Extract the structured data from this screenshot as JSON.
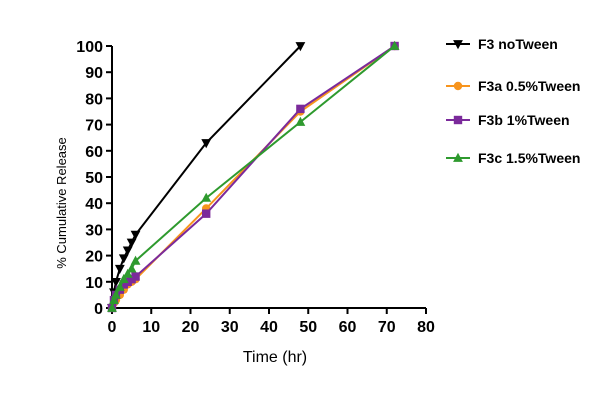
{
  "chart_data": {
    "type": "line",
    "xlabel": "Time (hr)",
    "ylabel": "% Cumulative Release",
    "xlim": [
      0,
      80
    ],
    "ylim": [
      0,
      100
    ],
    "xticks": [
      "0",
      "10",
      "20",
      "30",
      "40",
      "50",
      "60",
      "70",
      "80"
    ],
    "yticks": [
      "0",
      "10",
      "20",
      "30",
      "40",
      "50",
      "60",
      "70",
      "80",
      "90",
      "100"
    ],
    "grid": false,
    "legend_position": "right",
    "series": [
      {
        "name": "F3 noTween",
        "color": "#000000",
        "marker": "triangle-down",
        "points": [
          [
            0,
            0
          ],
          [
            0.5,
            6
          ],
          [
            1,
            10
          ],
          [
            2,
            15
          ],
          [
            3,
            19
          ],
          [
            4,
            22
          ],
          [
            5,
            25
          ],
          [
            6,
            28
          ],
          [
            24,
            63
          ],
          [
            48,
            100
          ]
        ]
      },
      {
        "name": "F3a 0.5%Tween",
        "color": "#f7941d",
        "marker": "circle",
        "points": [
          [
            0,
            0
          ],
          [
            0.5,
            2
          ],
          [
            1,
            3
          ],
          [
            2,
            5
          ],
          [
            3,
            7
          ],
          [
            4,
            9
          ],
          [
            5,
            10
          ],
          [
            6,
            11
          ],
          [
            24,
            38
          ],
          [
            48,
            75
          ],
          [
            72,
            100
          ]
        ]
      },
      {
        "name": "F3b 1%Tween",
        "color": "#7b2a9b",
        "marker": "square",
        "points": [
          [
            0,
            0
          ],
          [
            0.5,
            3
          ],
          [
            1,
            5
          ],
          [
            2,
            7
          ],
          [
            3,
            9
          ],
          [
            4,
            10
          ],
          [
            5,
            11
          ],
          [
            6,
            12
          ],
          [
            24,
            36
          ],
          [
            48,
            76
          ],
          [
            72,
            100
          ]
        ]
      },
      {
        "name": "F3c 1.5%Tween",
        "color": "#2e9a2e",
        "marker": "triangle-up",
        "points": [
          [
            0,
            0
          ],
          [
            0.5,
            3
          ],
          [
            1,
            5
          ],
          [
            2,
            8
          ],
          [
            3,
            11
          ],
          [
            4,
            13
          ],
          [
            5,
            15
          ],
          [
            6,
            18
          ],
          [
            24,
            42
          ],
          [
            48,
            71
          ],
          [
            72,
            100
          ]
        ]
      }
    ]
  }
}
